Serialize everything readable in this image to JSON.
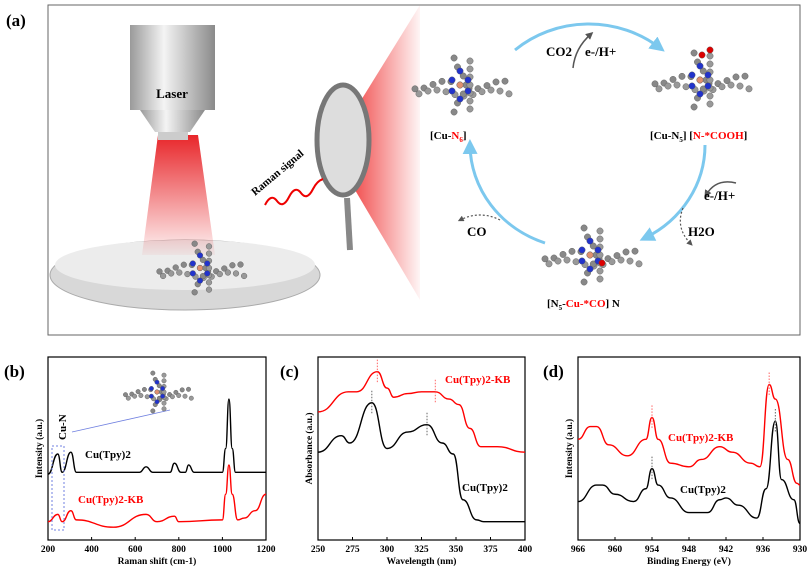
{
  "panel_a": {
    "label": "(a)",
    "laser": "Laser",
    "raman_signal": "Raman signal",
    "states": {
      "cu_n6": [
        "[Cu-",
        "N",
        "6",
        "]"
      ],
      "cu_n5_cooh": [
        "[Cu-N",
        "5",
        "] [",
        "N-*COOH",
        "]"
      ],
      "n5_cu_co": [
        "[N",
        "5",
        "-",
        "Cu-*CO",
        "] N"
      ]
    },
    "co2": "CO2",
    "e_h_1": "e-/H+",
    "e_h_2": "e-/H+",
    "h2o": "H2O",
    "co": "CO",
    "colors": {
      "cycle_arrow": "#7cc8ee",
      "highlight": "#ff0000",
      "beam": "#e8262a"
    }
  },
  "chart_data": [
    {
      "panel": "(b)",
      "type": "line",
      "xlabel": "Raman shift (cm-1)",
      "ylabel": "Intensity (a.u.)",
      "xlim": [
        200,
        1200
      ],
      "ylim": [
        0,
        100
      ],
      "xticks": [
        200,
        400,
        600,
        800,
        1000,
        1200
      ],
      "annotation": "Cu-N",
      "series": [
        {
          "name": "Cu(Tpy)2",
          "color": "#000000",
          "x": [
            200,
            245,
            265,
            305,
            330,
            620,
            650,
            680,
            760,
            780,
            810,
            830,
            845,
            870,
            1000,
            1015,
            1030,
            1045,
            1060,
            1200
          ],
          "y": [
            36,
            47,
            37,
            48,
            37,
            37,
            40,
            37,
            37,
            42,
            37,
            37,
            41,
            37,
            37,
            50,
            77,
            50,
            37,
            37
          ]
        },
        {
          "name": "Cu(Tpy)2-KB",
          "color": "#ff0000",
          "x": [
            200,
            245,
            265,
            305,
            330,
            500,
            650,
            700,
            780,
            800,
            1000,
            1015,
            1030,
            1045,
            1070,
            1100,
            1150,
            1200
          ],
          "y": [
            10,
            14,
            10,
            16,
            11,
            7,
            14,
            10,
            13,
            10,
            11,
            25,
            41,
            25,
            11,
            12,
            16,
            25
          ]
        }
      ]
    },
    {
      "panel": "(c)",
      "type": "line",
      "xlabel": "Wavelength (nm)",
      "ylabel": "Absorbance (a.u.)",
      "xlim": [
        250,
        400
      ],
      "ylim": [
        0,
        100
      ],
      "xticks": [
        250,
        275,
        300,
        325,
        350,
        375,
        400
      ],
      "series": [
        {
          "name": "Cu(Tpy)2",
          "color": "#000000",
          "x": [
            250,
            267,
            273,
            289,
            300,
            315,
            329,
            340,
            348,
            355,
            365,
            370,
            400
          ],
          "y": [
            48,
            57,
            53,
            75,
            50,
            59,
            63,
            53,
            47,
            22,
            11,
            10,
            10
          ],
          "marked_peaks": [
            289,
            329
          ]
        },
        {
          "name": "Cu(Tpy)2-KB",
          "color": "#ff0000",
          "x": [
            250,
            272,
            278,
            293,
            300,
            305,
            315,
            325,
            335,
            345,
            352,
            360,
            368,
            380,
            400
          ],
          "y": [
            70,
            81,
            81,
            92,
            83,
            78,
            80,
            81,
            81,
            77,
            74,
            61,
            51,
            51,
            48
          ],
          "marked_peaks": [
            293,
            335
          ]
        }
      ]
    },
    {
      "panel": "(d)",
      "type": "line",
      "xlabel": "Binding Energy (eV)",
      "ylabel": "Intensity (a.u.)",
      "xlim": [
        966,
        930
      ],
      "ylim": [
        0,
        100
      ],
      "xticks": [
        966,
        960,
        954,
        948,
        942,
        936,
        930
      ],
      "series": [
        {
          "name": "Cu(Tpy)2",
          "color": "#000000",
          "x": [
            966,
            963,
            962,
            960,
            957,
            955,
            954,
            953,
            951,
            948,
            945,
            943,
            942,
            940,
            937,
            935.5,
            934,
            933,
            931,
            930
          ],
          "y": [
            21,
            30,
            30,
            25,
            21,
            28,
            39,
            30,
            23,
            15,
            15,
            22,
            23,
            19,
            12,
            28,
            65,
            33,
            22,
            9
          ],
          "marked_peaks": [
            954,
            934
          ]
        },
        {
          "name": "Cu(Tpy)2-KB",
          "color": "#ff0000",
          "x": [
            966,
            964,
            963,
            961,
            958,
            955,
            954,
            953,
            951,
            948,
            946,
            943,
            941,
            938,
            936.5,
            935,
            934,
            932,
            930.5,
            930
          ],
          "y": [
            55,
            62,
            62,
            52,
            46,
            55,
            67,
            55,
            42,
            40,
            44,
            51,
            48,
            42,
            40,
            85,
            77,
            44,
            31,
            30
          ],
          "marked_peaks": [
            954,
            935
          ]
        }
      ]
    }
  ]
}
